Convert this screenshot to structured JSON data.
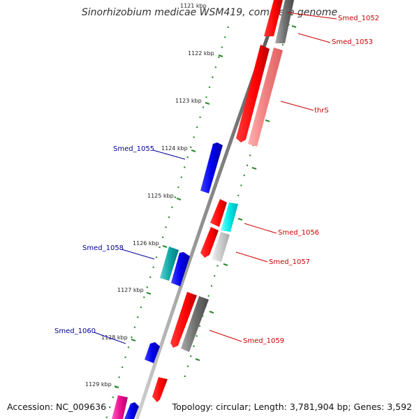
{
  "title": "Sinorhizobium medicae WSM419, complete genome",
  "accession": "Accession: NC_009636",
  "topology": "Topology: circular; Length: 3,781,904 bp; Genes: 3,592",
  "ticks": [
    "1121 kbp",
    "1122 kbp",
    "1123 kbp",
    "1124 kbp",
    "1125 kbp",
    "1126 kbp",
    "1127 kbp",
    "1128 kbp",
    "1129 kbp"
  ],
  "genes": [
    {
      "label": "Smed_1052",
      "strand": "forward",
      "color": "#cc0000"
    },
    {
      "label": "Smed_1053",
      "strand": "forward",
      "color": "#cc0000"
    },
    {
      "label": "thrS",
      "strand": "forward",
      "color": "#cc0000"
    },
    {
      "label": "Smed_1055",
      "strand": "reverse",
      "color": "#000099"
    },
    {
      "label": "Smed_1056",
      "strand": "forward",
      "color": "#cc0000"
    },
    {
      "label": "Smed_1057",
      "strand": "forward",
      "color": "#cc0000"
    },
    {
      "label": "Smed_1058",
      "strand": "reverse",
      "color": "#000099"
    },
    {
      "label": "Smed_1059",
      "strand": "forward",
      "color": "#cc0000"
    },
    {
      "label": "Smed_1060",
      "strand": "reverse",
      "color": "#000099"
    }
  ]
}
